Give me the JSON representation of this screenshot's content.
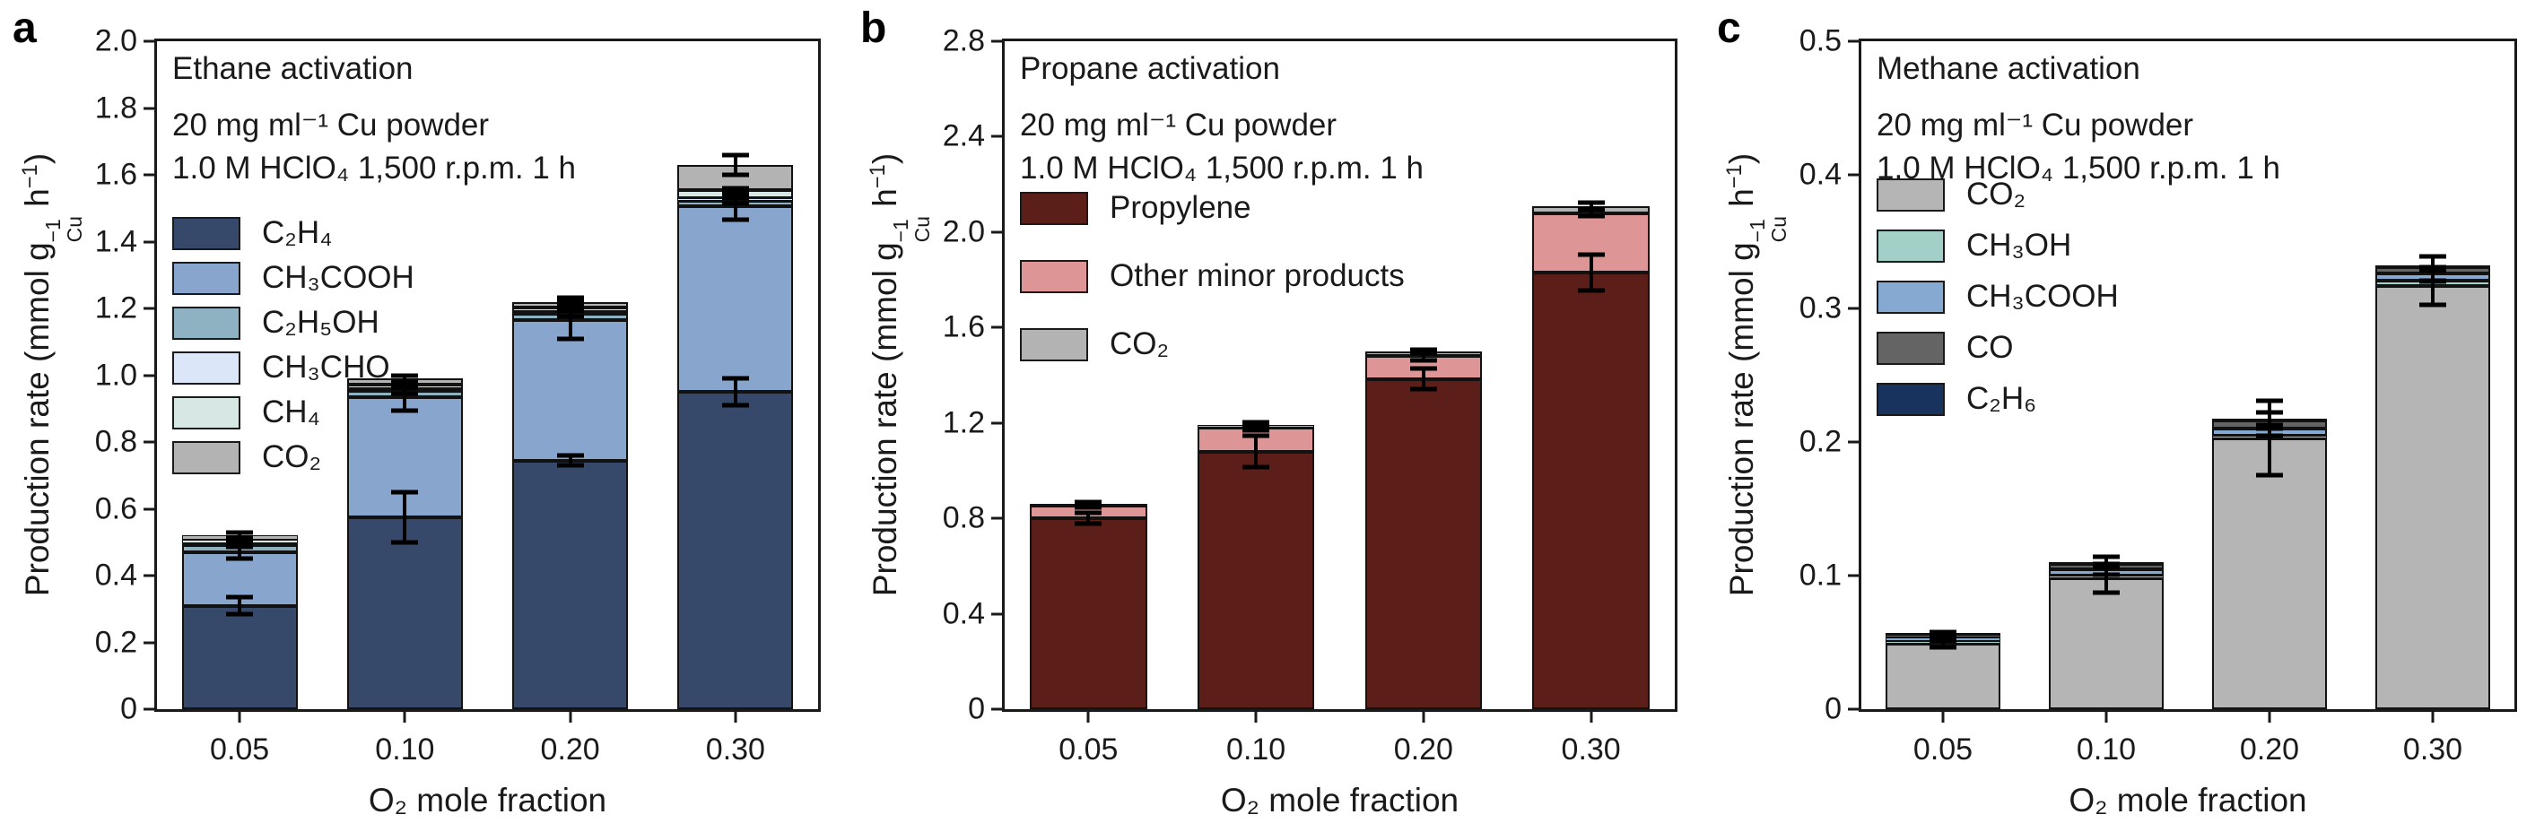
{
  "figure": {
    "panel_letters": [
      "a",
      "b",
      "c"
    ]
  },
  "chart_data": [
    {
      "type": "bar",
      "stacked": true,
      "panel_letter": "a",
      "title": "Ethane activation",
      "conditions": [
        "20 mg ml⁻¹ Cu powder",
        "1.0 M HClO₄ 1,500 r.p.m. 1 h"
      ],
      "xlabel": "O₂ mole fraction",
      "ylabel_rich": [
        {
          "t": "Production rate (mmol g"
        },
        {
          "stack": {
            "sup": "−1",
            "sub": "Cu"
          }
        },
        {
          "t": " h"
        },
        {
          "sup": "−1"
        },
        {
          "t": ")"
        }
      ],
      "ylim": [
        0,
        2.0
      ],
      "yticks": [
        {
          "v": 0,
          "label": "0"
        },
        {
          "v": 0.2,
          "label": "0.2"
        },
        {
          "v": 0.4,
          "label": "0.4"
        },
        {
          "v": 0.6,
          "label": "0.6"
        },
        {
          "v": 0.8,
          "label": "0.8"
        },
        {
          "v": 1.0,
          "label": "1.0"
        },
        {
          "v": 1.2,
          "label": "1.2"
        },
        {
          "v": 1.4,
          "label": "1.4"
        },
        {
          "v": 1.6,
          "label": "1.6"
        },
        {
          "v": 1.8,
          "label": "1.8"
        },
        {
          "v": 2.0,
          "label": "2.0"
        }
      ],
      "categories": [
        "0.05",
        "0.10",
        "0.20",
        "0.30"
      ],
      "series": [
        {
          "key": "c2h4",
          "name": "C₂H₄",
          "color": "#36496b",
          "values": [
            0.31,
            0.575,
            0.745,
            0.95
          ]
        },
        {
          "key": "ch3cooh",
          "name": "CH₃COOH",
          "color": "#87a5cd",
          "values": [
            0.16,
            0.36,
            0.42,
            0.555
          ]
        },
        {
          "key": "c2h5oh",
          "name": "C₂H₅OH",
          "color": "#8fb2c3",
          "values": [
            0.022,
            0.018,
            0.018,
            0.018
          ]
        },
        {
          "key": "ch3cho",
          "name": "CH₃CHO",
          "color": "#dbe7f8",
          "values": [
            0.005,
            0.005,
            0.005,
            0.006
          ]
        },
        {
          "key": "ch4",
          "name": "CH₄",
          "color": "#d7e8e4",
          "values": [
            0.01,
            0.015,
            0.015,
            0.026
          ]
        },
        {
          "key": "co2",
          "name": "CO₂",
          "color": "#b3b3b3",
          "values": [
            0.013,
            0.017,
            0.017,
            0.075
          ]
        }
      ],
      "totals": [
        0.52,
        0.99,
        1.22,
        1.63
      ],
      "error_bars": [
        [
          {
            "at": 0.31,
            "err": 0.025
          },
          {
            "at": 0.47,
            "err": 0.018
          },
          {
            "at": 0.492,
            "err": 0.007
          },
          {
            "at": 0.507,
            "err": 0.006
          },
          {
            "at": 0.52,
            "err": 0.008
          }
        ],
        [
          {
            "at": 0.575,
            "err": 0.075
          },
          {
            "at": 0.935,
            "err": 0.04
          },
          {
            "at": 0.953,
            "err": 0.008
          },
          {
            "at": 0.973,
            "err": 0.007
          },
          {
            "at": 0.99,
            "err": 0.01
          }
        ],
        [
          {
            "at": 0.745,
            "err": 0.015
          },
          {
            "at": 1.165,
            "err": 0.055
          },
          {
            "at": 1.183,
            "err": 0.008
          },
          {
            "at": 1.203,
            "err": 0.008
          },
          {
            "at": 1.22,
            "err": 0.012
          }
        ],
        [
          {
            "at": 0.95,
            "err": 0.04
          },
          {
            "at": 1.505,
            "err": 0.04
          },
          {
            "at": 1.523,
            "err": 0.008
          },
          {
            "at": 1.549,
            "err": 0.01
          },
          {
            "at": 1.63,
            "err": 0.03
          }
        ]
      ]
    },
    {
      "type": "bar",
      "stacked": true,
      "panel_letter": "b",
      "title": "Propane activation",
      "conditions": [
        "20 mg ml⁻¹ Cu powder",
        "1.0 M HClO₄ 1,500 r.p.m. 1 h"
      ],
      "xlabel": "O₂ mole fraction",
      "ylabel_rich": [
        {
          "t": "Production rate (mmol g"
        },
        {
          "stack": {
            "sup": "−1",
            "sub": "Cu"
          }
        },
        {
          "t": " h"
        },
        {
          "sup": "−1"
        },
        {
          "t": ")"
        }
      ],
      "ylim": [
        0,
        2.8
      ],
      "yticks": [
        {
          "v": 0,
          "label": "0"
        },
        {
          "v": 0.4,
          "label": "0.4"
        },
        {
          "v": 0.8,
          "label": "0.8"
        },
        {
          "v": 1.2,
          "label": "1.2"
        },
        {
          "v": 1.6,
          "label": "1.6"
        },
        {
          "v": 2.0,
          "label": "2.0"
        },
        {
          "v": 2.4,
          "label": "2.4"
        },
        {
          "v": 2.8,
          "label": "2.8"
        }
      ],
      "categories": [
        "0.05",
        "0.10",
        "0.20",
        "0.30"
      ],
      "series": [
        {
          "key": "propylene",
          "name": "Propylene",
          "color": "#5c1e18",
          "values": [
            0.8,
            1.08,
            1.385,
            1.83
          ]
        },
        {
          "key": "other",
          "name": "Other minor products",
          "color": "#dd9595",
          "values": [
            0.055,
            0.1,
            0.095,
            0.25
          ]
        },
        {
          "key": "co2",
          "name": "CO₂",
          "color": "#b3b3b3",
          "values": [
            0.005,
            0.01,
            0.02,
            0.03
          ]
        }
      ],
      "totals": [
        0.86,
        1.19,
        1.5,
        2.11
      ],
      "error_bars": [
        [
          {
            "at": 0.8,
            "err": 0.022
          },
          {
            "at": 0.855,
            "err": 0.008
          },
          {
            "at": 0.86,
            "err": 0.01
          }
        ],
        [
          {
            "at": 1.08,
            "err": 0.065
          },
          {
            "at": 1.18,
            "err": 0.012
          },
          {
            "at": 1.19,
            "err": 0.012
          }
        ],
        [
          {
            "at": 1.385,
            "err": 0.045
          },
          {
            "at": 1.48,
            "err": 0.018
          },
          {
            "at": 1.5,
            "err": 0.008
          }
        ],
        [
          {
            "at": 1.83,
            "err": 0.075
          },
          {
            "at": 2.08,
            "err": 0.012
          },
          {
            "at": 2.11,
            "err": 0.012
          }
        ]
      ]
    },
    {
      "type": "bar",
      "stacked": true,
      "panel_letter": "c",
      "title": "Methane activation",
      "conditions": [
        "20 mg ml⁻¹ Cu powder",
        "1.0 M HClO₄ 1,500 r.p.m. 1 h"
      ],
      "xlabel": "O₂ mole fraction",
      "ylabel_rich": [
        {
          "t": "Production rate (mmol g"
        },
        {
          "stack": {
            "sup": "−1",
            "sub": "Cu"
          }
        },
        {
          "t": " h"
        },
        {
          "sup": "−1"
        },
        {
          "t": ")"
        }
      ],
      "ylim": [
        0,
        0.5
      ],
      "yticks": [
        {
          "v": 0,
          "label": "0"
        },
        {
          "v": 0.1,
          "label": "0.1"
        },
        {
          "v": 0.2,
          "label": "0.2"
        },
        {
          "v": 0.3,
          "label": "0.3"
        },
        {
          "v": 0.4,
          "label": "0.4"
        },
        {
          "v": 0.5,
          "label": "0.5"
        }
      ],
      "categories": [
        "0.05",
        "0.10",
        "0.20",
        "0.30"
      ],
      "series": [
        {
          "key": "co2",
          "name": "CO₂",
          "color": "#b5b5b5",
          "values": [
            0.049,
            0.098,
            0.203,
            0.317
          ]
        },
        {
          "key": "ch3oh",
          "name": "CH₃OH",
          "color": "#a3cfc9",
          "values": [
            0.002,
            0.002,
            0.002,
            0.004
          ]
        },
        {
          "key": "ch3cooh",
          "name": "CH₃COOH",
          "color": "#86a9d2",
          "values": [
            0.003,
            0.005,
            0.005,
            0.005
          ]
        },
        {
          "key": "co",
          "name": "CO",
          "color": "#646464",
          "values": [
            0.002,
            0.004,
            0.006,
            0.005
          ]
        },
        {
          "key": "c2h6",
          "name": "C₂H₆",
          "color": "#17335e",
          "values": [
            0.0005,
            0.001,
            0.001,
            0.001
          ]
        }
      ],
      "totals": [
        0.056,
        0.11,
        0.217,
        0.33
      ],
      "error_bars": [
        [
          {
            "at": 0.049,
            "err": 0.003
          },
          {
            "at": 0.053,
            "err": 0.002
          },
          {
            "at": 0.056,
            "err": 0.002
          }
        ],
        [
          {
            "at": 0.098,
            "err": 0.011
          },
          {
            "at": 0.104,
            "err": 0.003
          },
          {
            "at": 0.11,
            "err": 0.004
          }
        ],
        [
          {
            "at": 0.203,
            "err": 0.028
          },
          {
            "at": 0.209,
            "err": 0.004
          },
          {
            "at": 0.216,
            "err": 0.006
          }
        ],
        [
          {
            "at": 0.317,
            "err": 0.014
          },
          {
            "at": 0.324,
            "err": 0.004
          },
          {
            "at": 0.33,
            "err": 0.009
          }
        ]
      ]
    }
  ]
}
